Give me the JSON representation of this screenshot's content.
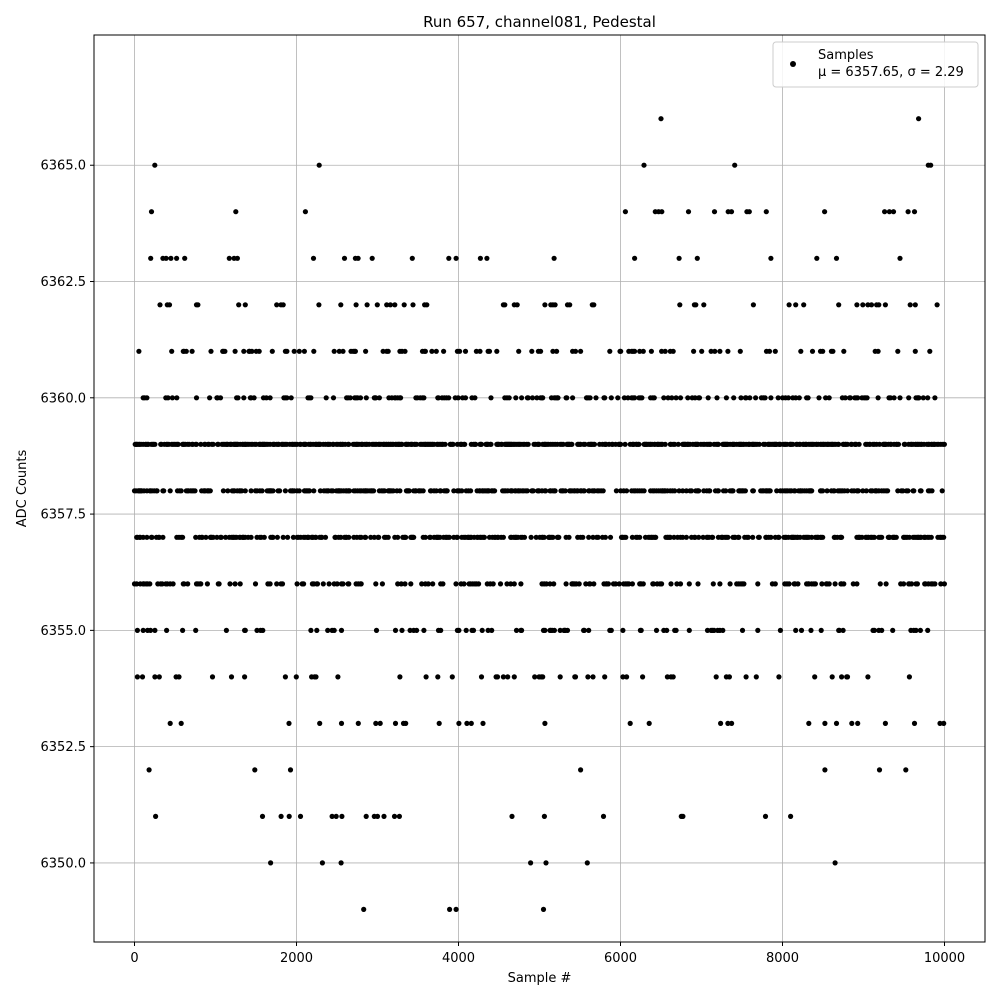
{
  "chart_data": {
    "type": "scatter",
    "title": "Run 657, channel081, Pedestal",
    "xlabel": "Sample #",
    "ylabel": "ADC Counts",
    "xlim": [
      -500,
      10500
    ],
    "ylim": [
      6348.3,
      6367.8
    ],
    "xticks": [
      0,
      2000,
      4000,
      6000,
      8000,
      10000
    ],
    "xtick_labels": [
      "0",
      "2000",
      "4000",
      "6000",
      "8000",
      "10000"
    ],
    "yticks": [
      6350.0,
      6352.5,
      6355.0,
      6357.5,
      6360.0,
      6362.5,
      6365.0
    ],
    "ytick_labels": [
      "6350.0",
      "6352.5",
      "6355.0",
      "6357.5",
      "6360.0",
      "6362.5",
      "6365.0"
    ],
    "grid": true,
    "legend": {
      "placement": "upper right",
      "label": "Samples",
      "stats": "μ = 6357.65, σ = 2.29"
    },
    "marker_color": "#000000",
    "sample_count": 10000,
    "row_density": [
      {
        "y": 6366,
        "density": 0
      },
      {
        "y": 6365,
        "density": 0
      },
      {
        "y": 6364,
        "density": 0
      },
      {
        "y": 6363,
        "density": 0.01
      },
      {
        "y": 6362,
        "density": 0.04
      },
      {
        "y": 6361,
        "density": 0.09
      },
      {
        "y": 6360,
        "density": 0.15
      },
      {
        "y": 6359,
        "density": 0.45
      },
      {
        "y": 6358,
        "density": 0.3
      },
      {
        "y": 6357,
        "density": 0.3
      },
      {
        "y": 6356,
        "density": 0.15
      },
      {
        "y": 6355,
        "density": 0.09
      },
      {
        "y": 6354,
        "density": 0.045
      },
      {
        "y": 6353,
        "density": 0.02
      },
      {
        "y": 6352,
        "density": 0.008
      },
      {
        "y": 6351,
        "density": 0
      },
      {
        "y": 6350,
        "density": 0
      },
      {
        "y": 6349,
        "density": 0
      }
    ],
    "sparse_points": [
      {
        "x": 6500,
        "y": 6366
      },
      {
        "x": 9680,
        "y": 6366
      },
      {
        "x": 250,
        "y": 6365
      },
      {
        "x": 2280,
        "y": 6365
      },
      {
        "x": 6290,
        "y": 6365
      },
      {
        "x": 7410,
        "y": 6365
      },
      {
        "x": 9800,
        "y": 6365
      },
      {
        "x": 9830,
        "y": 6365
      },
      {
        "x": 210,
        "y": 6364
      },
      {
        "x": 1250,
        "y": 6364
      },
      {
        "x": 2110,
        "y": 6364
      },
      {
        "x": 6060,
        "y": 6364
      },
      {
        "x": 6430,
        "y": 6364
      },
      {
        "x": 6470,
        "y": 6364
      },
      {
        "x": 6510,
        "y": 6364
      },
      {
        "x": 6840,
        "y": 6364
      },
      {
        "x": 7160,
        "y": 6364
      },
      {
        "x": 7330,
        "y": 6364
      },
      {
        "x": 7370,
        "y": 6364
      },
      {
        "x": 7560,
        "y": 6364
      },
      {
        "x": 7590,
        "y": 6364
      },
      {
        "x": 7800,
        "y": 6364
      },
      {
        "x": 8520,
        "y": 6364
      },
      {
        "x": 9260,
        "y": 6364
      },
      {
        "x": 9320,
        "y": 6364
      },
      {
        "x": 9370,
        "y": 6364
      },
      {
        "x": 9550,
        "y": 6364
      },
      {
        "x": 9630,
        "y": 6364
      },
      {
        "x": 200,
        "y": 6363
      },
      {
        "x": 390,
        "y": 6363
      },
      {
        "x": 450,
        "y": 6363
      },
      {
        "x": 520,
        "y": 6363
      },
      {
        "x": 620,
        "y": 6363
      },
      {
        "x": 1170,
        "y": 6363
      },
      {
        "x": 1230,
        "y": 6363
      },
      {
        "x": 1270,
        "y": 6363
      },
      {
        "x": 2210,
        "y": 6363
      },
      {
        "x": 2760,
        "y": 6363
      },
      {
        "x": 3430,
        "y": 6363
      },
      {
        "x": 3880,
        "y": 6363
      },
      {
        "x": 3970,
        "y": 6363
      },
      {
        "x": 4270,
        "y": 6363
      },
      {
        "x": 4350,
        "y": 6363
      },
      {
        "x": 5180,
        "y": 6363
      },
      {
        "x": 260,
        "y": 6351
      },
      {
        "x": 1580,
        "y": 6351
      },
      {
        "x": 1810,
        "y": 6351
      },
      {
        "x": 1910,
        "y": 6351
      },
      {
        "x": 2050,
        "y": 6351
      },
      {
        "x": 2440,
        "y": 6351
      },
      {
        "x": 2490,
        "y": 6351
      },
      {
        "x": 2560,
        "y": 6351
      },
      {
        "x": 2860,
        "y": 6351
      },
      {
        "x": 2960,
        "y": 6351
      },
      {
        "x": 3000,
        "y": 6351
      },
      {
        "x": 3080,
        "y": 6351
      },
      {
        "x": 3210,
        "y": 6351
      },
      {
        "x": 3270,
        "y": 6351
      },
      {
        "x": 4660,
        "y": 6351
      },
      {
        "x": 5060,
        "y": 6351
      },
      {
        "x": 5790,
        "y": 6351
      },
      {
        "x": 6750,
        "y": 6351
      },
      {
        "x": 6770,
        "y": 6351
      },
      {
        "x": 7790,
        "y": 6351
      },
      {
        "x": 8100,
        "y": 6351
      },
      {
        "x": 1680,
        "y": 6350
      },
      {
        "x": 2320,
        "y": 6350
      },
      {
        "x": 2550,
        "y": 6350
      },
      {
        "x": 4890,
        "y": 6350
      },
      {
        "x": 5080,
        "y": 6350
      },
      {
        "x": 5590,
        "y": 6350
      },
      {
        "x": 8650,
        "y": 6350
      },
      {
        "x": 2830,
        "y": 6349
      },
      {
        "x": 3890,
        "y": 6349
      },
      {
        "x": 3970,
        "y": 6349
      },
      {
        "x": 5050,
        "y": 6349
      }
    ]
  }
}
